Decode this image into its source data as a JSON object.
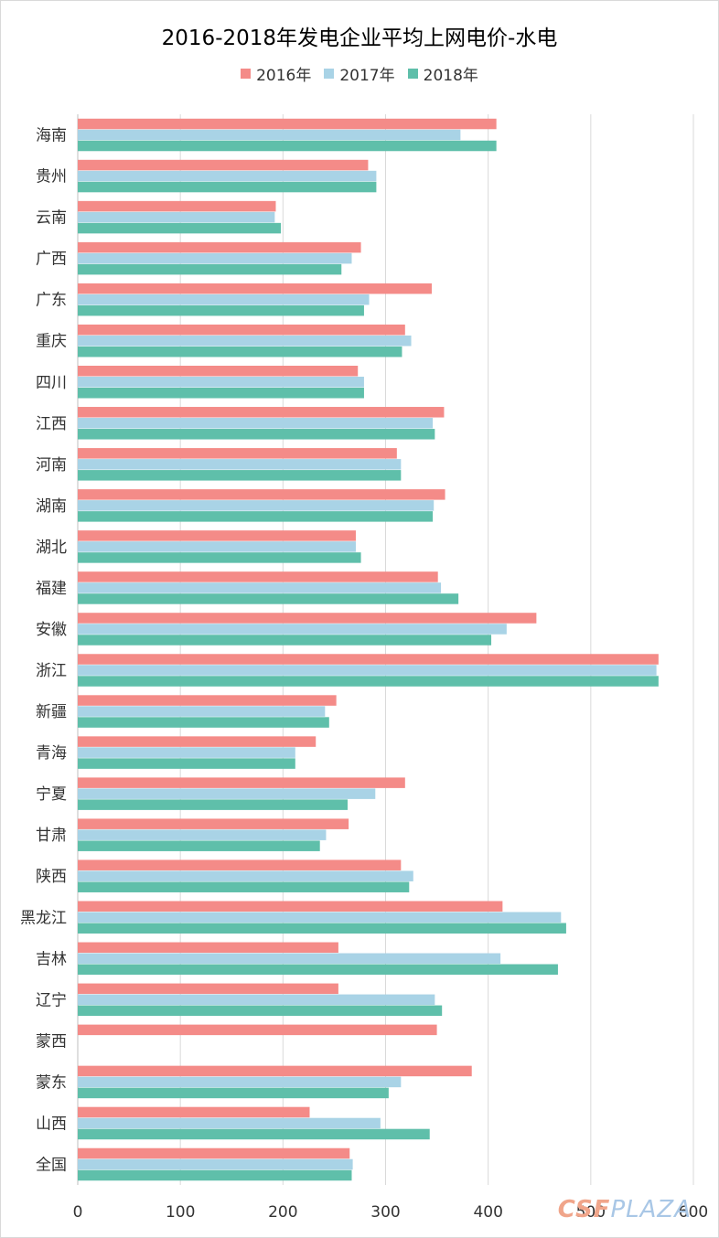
{
  "chart_data": {
    "type": "bar",
    "orientation": "horizontal",
    "title": "2016-2018年发电企业平均上网电价-水电",
    "xlim": [
      0,
      600
    ],
    "x_ticks": [
      "0",
      "100",
      "200",
      "300",
      "400",
      "500",
      "600"
    ],
    "grid": true,
    "legend_position": "top",
    "categories": [
      "海南",
      "贵州",
      "云南",
      "广西",
      "广东",
      "重庆",
      "四川",
      "江西",
      "河南",
      "湖南",
      "湖北",
      "福建",
      "安徽",
      "浙江",
      "新疆",
      "青海",
      "宁夏",
      "甘肃",
      "陕西",
      "黑龙江",
      "吉林",
      "辽宁",
      "蒙西",
      "蒙东",
      "山西",
      "全国"
    ],
    "series": [
      {
        "name": "2016年",
        "color": "#f48b88",
        "values": [
          408,
          283,
          193,
          276,
          345,
          319,
          273,
          357,
          311,
          358,
          271,
          351,
          447,
          566,
          252,
          232,
          319,
          264,
          315,
          414,
          254,
          254,
          350,
          384,
          226,
          265
        ]
      },
      {
        "name": "2017年",
        "color": "#a9d3e6",
        "values": [
          373,
          291,
          192,
          267,
          284,
          325,
          279,
          346,
          315,
          347,
          271,
          354,
          418,
          564,
          241,
          212,
          290,
          242,
          327,
          471,
          412,
          348,
          null,
          315,
          295,
          268
        ]
      },
      {
        "name": "2018年",
        "color": "#5fbfaa",
        "values": [
          408,
          291,
          198,
          257,
          279,
          316,
          279,
          348,
          315,
          346,
          276,
          371,
          403,
          566,
          245,
          212,
          263,
          236,
          323,
          476,
          468,
          355,
          null,
          303,
          343,
          267
        ]
      }
    ]
  },
  "watermark": {
    "part1": "CSF",
    "part2": "PLAZA"
  }
}
